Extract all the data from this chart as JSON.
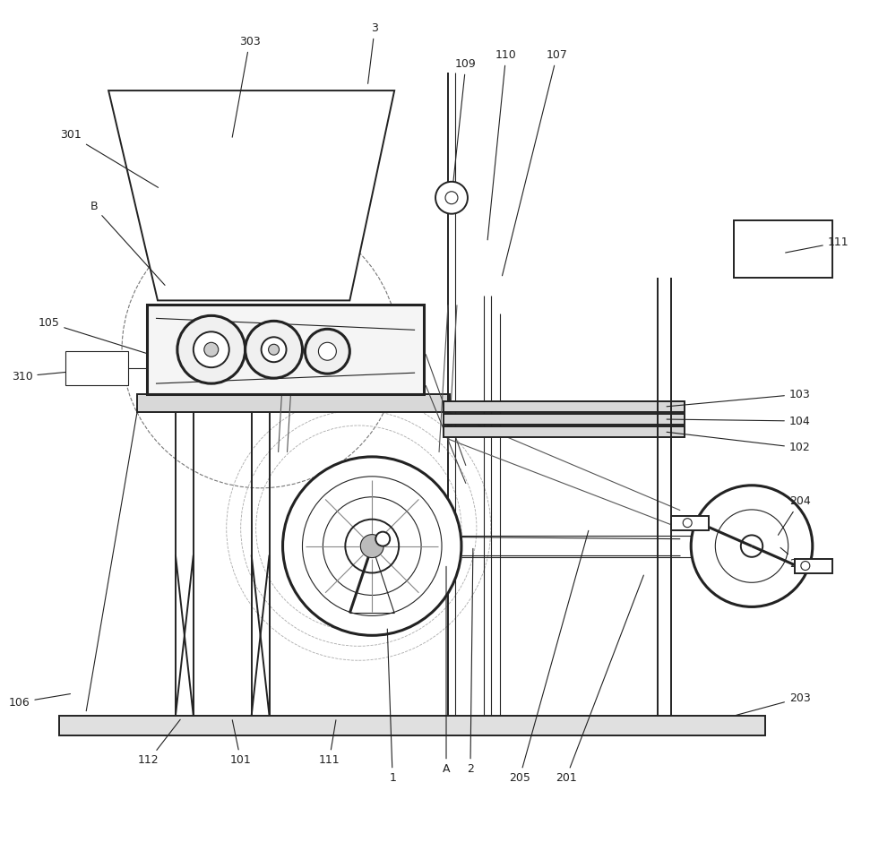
{
  "bg_color": "white",
  "lc": "#222222",
  "lw": 1.4,
  "lt": 0.8,
  "lk": 2.2,
  "fs": 9,
  "figsize": [
    10.0,
    9.5
  ],
  "dpi": 100
}
